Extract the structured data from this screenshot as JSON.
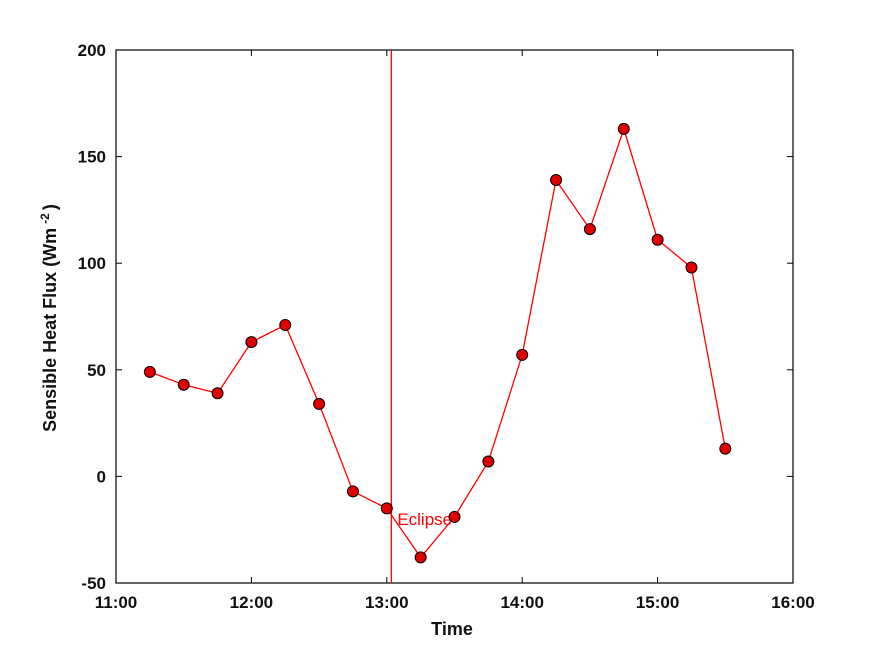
{
  "chart_data": {
    "type": "line",
    "xlabel": "Time",
    "ylabel": "Sensible Heat Flux (Wm",
    "ylabel_sup": "-2",
    "ylabel_close": ")",
    "x_ticks": [
      "11:00",
      "12:00",
      "13:00",
      "14:00",
      "15:00",
      "16:00"
    ],
    "y_ticks": [
      "-50",
      "0",
      "50",
      "100",
      "150",
      "200"
    ],
    "xlim": [
      "11:00",
      "16:00"
    ],
    "ylim": [
      -50,
      200
    ],
    "grid": false,
    "series": [
      {
        "color": "#ff0000",
        "marker_color": "#e00000",
        "x": [
          "11:15",
          "11:30",
          "11:45",
          "12:00",
          "12:15",
          "12:30",
          "12:45",
          "13:00",
          "13:15",
          "13:30",
          "13:45",
          "14:00",
          "14:15",
          "14:30",
          "14:45",
          "15:00",
          "15:15",
          "15:30"
        ],
        "y": [
          49,
          43,
          39,
          63,
          71,
          34,
          -7,
          -15,
          -38,
          -19,
          7,
          57,
          139,
          116,
          163,
          111,
          98,
          13
        ]
      }
    ],
    "annotations": [
      {
        "type": "vline",
        "x": "13:02",
        "color": "#ff0000",
        "label": "Eclipse"
      }
    ]
  }
}
